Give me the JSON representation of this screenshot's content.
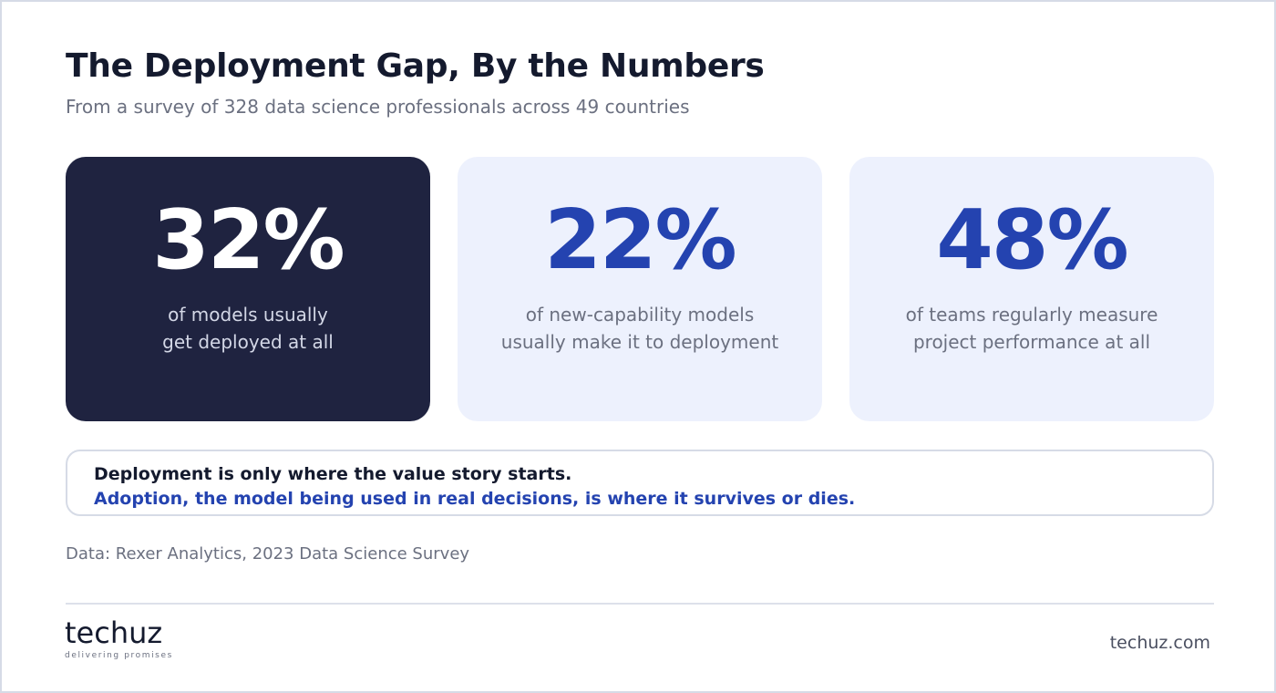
{
  "header": {
    "title": "The Deployment Gap, By the Numbers",
    "subtitle": "From a survey of 328 data science professionals across 49 countries"
  },
  "stats": [
    {
      "value": "32%",
      "desc_line1": "of models usually",
      "desc_line2": "get deployed at all"
    },
    {
      "value": "22%",
      "desc_line1": "of new-capability models",
      "desc_line2": "usually make it to deployment"
    },
    {
      "value": "48%",
      "desc_line1": "of teams regularly measure",
      "desc_line2": "project performance at all"
    }
  ],
  "callout": {
    "line1": "Deployment is only where the value story starts.",
    "line2": "Adoption, the model being used in real decisions, is where it survives or dies."
  },
  "source": "Data: Rexer Analytics, 2023 Data Science Survey",
  "footer": {
    "logo_word": "techuz",
    "logo_tagline": "delivering promises",
    "site": "techuz.com"
  },
  "colors": {
    "dark_card": "#1f2340",
    "light_card": "#edf1fd",
    "accent_blue": "#2443b0",
    "text_dark": "#141a2e",
    "text_muted": "#6b7080"
  }
}
